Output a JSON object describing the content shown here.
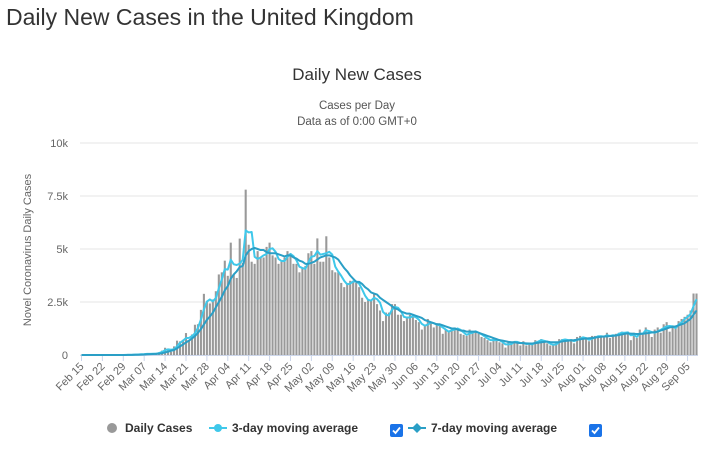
{
  "header": {
    "title": "Daily New Cases in the United Kingdom"
  },
  "chart_data": {
    "type": "bar",
    "title": "Daily New Cases",
    "subtitle": [
      "Cases per Day",
      "Data as of 0:00 GMT+0"
    ],
    "y_label": "Novel Coronavirus Daily Cases",
    "grid": true,
    "legend": "bottom",
    "ylim": [
      0,
      10000
    ],
    "yticks": [
      0,
      {
        "value": 2500,
        "label": "2.5k"
      },
      {
        "value": 5000,
        "label": "5k"
      },
      {
        "value": 7500,
        "label": "7.5k"
      },
      {
        "value": 10000,
        "label": "10k"
      }
    ],
    "categories": [
      "Feb 15",
      null,
      null,
      null,
      null,
      null,
      null,
      "Feb 22",
      null,
      null,
      null,
      null,
      null,
      null,
      "Feb 29",
      null,
      null,
      null,
      null,
      null,
      null,
      "Mar 07",
      null,
      null,
      null,
      null,
      null,
      null,
      "Mar 14",
      null,
      null,
      null,
      null,
      null,
      null,
      "Mar 21",
      null,
      null,
      null,
      null,
      null,
      null,
      "Mar 28",
      null,
      null,
      null,
      null,
      null,
      null,
      "Apr 04",
      null,
      null,
      null,
      null,
      null,
      null,
      "Apr 11",
      null,
      null,
      null,
      null,
      null,
      null,
      "Apr 18",
      null,
      null,
      null,
      null,
      null,
      null,
      "Apr 25",
      null,
      null,
      null,
      null,
      null,
      null,
      "May 02",
      null,
      null,
      null,
      null,
      null,
      null,
      "May 09",
      null,
      null,
      null,
      null,
      null,
      null,
      "May 16",
      null,
      null,
      null,
      null,
      null,
      null,
      "May 23",
      null,
      null,
      null,
      null,
      null,
      null,
      "May 30",
      null,
      null,
      null,
      null,
      null,
      null,
      "Jun 06",
      null,
      null,
      null,
      null,
      null,
      null,
      "Jun 13",
      null,
      null,
      null,
      null,
      null,
      null,
      "Jun 20",
      null,
      null,
      null,
      null,
      null,
      null,
      "Jun 27",
      null,
      null,
      null,
      null,
      null,
      null,
      "Jul 04",
      null,
      null,
      null,
      null,
      null,
      null,
      "Jul 11",
      null,
      null,
      null,
      null,
      null,
      null,
      "Jul 18",
      null,
      null,
      null,
      null,
      null,
      null,
      "Jul 25",
      null,
      null,
      null,
      null,
      null,
      null,
      "Aug 01",
      null,
      null,
      null,
      null,
      null,
      null,
      "Aug 08",
      null,
      null,
      null,
      null,
      null,
      null,
      "Aug 15",
      null,
      null,
      null,
      null,
      null,
      null,
      "Aug 22",
      null,
      null,
      null,
      null,
      null,
      null,
      "Aug 29",
      null,
      null,
      null,
      null,
      null,
      null,
      "Sep 05",
      null,
      null,
      null
    ],
    "series": [
      {
        "name": "Daily Cases",
        "type": "bar",
        "color": "#999999",
        "values": [
          0,
          0,
          0,
          0,
          0,
          0,
          0,
          0,
          0,
          4,
          0,
          0,
          2,
          5,
          3,
          12,
          4,
          11,
          34,
          29,
          48,
          46,
          67,
          48,
          52,
          83,
          134,
          208,
          342,
          251,
          152,
          407,
          676,
          643,
          714,
          1035,
          665,
          967,
          1427,
          1452,
          2129,
          2885,
          2546,
          2433,
          2619,
          3009,
          3800,
          3900,
          4450,
          3735,
          5300,
          3802,
          3634,
          5491,
          4344,
          7800,
          5200,
          4400,
          4300,
          4900,
          4600,
          4600,
          5100,
          5300,
          4700,
          4600,
          4300,
          4400,
          4600,
          4900,
          4800,
          4300,
          4300,
          3900,
          4100,
          4200,
          4800,
          4900,
          4300,
          5500,
          4400,
          4400,
          5600,
          4600,
          4000,
          3900,
          3900,
          3400,
          3200,
          3400,
          3500,
          3500,
          3400,
          3200,
          2700,
          2500,
          2600,
          2600,
          2900,
          2400,
          2100,
          1600,
          2000,
          2000,
          2400,
          2400,
          1900,
          1900,
          1600,
          1800,
          1900,
          1800,
          1650,
          1550,
          1200,
          1400,
          1700,
          1500,
          1300,
          1500,
          1400,
          1000,
          1200,
          1100,
          1200,
          1300,
          1250,
          1000,
          950,
          900,
          1200,
          1050,
          1100,
          1000,
          850,
          800,
          700,
          600,
          800,
          700,
          600,
          550,
          350,
          600,
          600,
          650,
          600,
          450,
          650,
          450,
          500,
          550,
          700,
          650,
          750,
          600,
          550,
          450,
          450,
          600,
          750,
          750,
          700,
          650,
          750,
          550,
          850,
          900,
          750,
          750,
          650,
          900,
          900,
          850,
          900,
          850,
          1050,
          800,
          950,
          1000,
          1050,
          1100,
          1000,
          1100,
          700,
          1050,
          800,
          1200,
          1000,
          1300,
          1100,
          850,
          1200,
          1300,
          1050,
          1450,
          1550,
          1100,
          1400,
          1300,
          1600,
          1700,
          1800,
          1900,
          2100,
          2900,
          2900
        ]
      },
      {
        "name": "3-day moving average",
        "type": "line",
        "color": "#3fc8ea",
        "values": [
          0,
          0,
          0,
          0,
          0,
          0,
          0,
          0,
          0,
          1,
          1,
          1,
          1,
          2,
          3,
          7,
          6,
          9,
          16,
          25,
          37,
          41,
          54,
          54,
          56,
          61,
          90,
          142,
          228,
          267,
          248,
          270,
          412,
          575,
          678,
          797,
          805,
          889,
          1020,
          1282,
          1669,
          2155,
          2520,
          2621,
          2533,
          2687,
          3143,
          3570,
          4050,
          4028,
          4495,
          4279,
          4245,
          4309,
          4490,
          5878,
          5781,
          5800,
          4633,
          4533,
          4600,
          4700,
          4767,
          5000,
          5033,
          4867,
          4533,
          4433,
          4433,
          4633,
          4767,
          4667,
          4467,
          4167,
          4100,
          4067,
          4367,
          4633,
          4667,
          4900,
          4733,
          4767,
          4800,
          4867,
          4733,
          4167,
          3933,
          3733,
          3500,
          3333,
          3367,
          3467,
          3467,
          3367,
          3100,
          2800,
          2600,
          2567,
          2700,
          2633,
          2467,
          2033,
          1900,
          1867,
          2133,
          2267,
          2233,
          2067,
          1800,
          1767,
          1767,
          1833,
          1783,
          1667,
          1467,
          1383,
          1433,
          1533,
          1500,
          1433,
          1400,
          1300,
          1200,
          1100,
          1167,
          1200,
          1250,
          1183,
          1067,
          950,
          1017,
          1050,
          1117,
          1050,
          983,
          883,
          783,
          700,
          700,
          700,
          700,
          617,
          500,
          500,
          517,
          617,
          617,
          567,
          567,
          517,
          533,
          500,
          583,
          633,
          700,
          667,
          633,
          533,
          483,
          500,
          600,
          700,
          733,
          700,
          700,
          650,
          717,
          767,
          833,
          800,
          717,
          767,
          817,
          883,
          883,
          867,
          933,
          900,
          933,
          917,
          1000,
          1050,
          1050,
          1067,
          933,
          950,
          850,
          1017,
          1000,
          1167,
          1133,
          1083,
          1050,
          1117,
          1183,
          1267,
          1350,
          1367,
          1350,
          1267,
          1433,
          1533,
          1700,
          1800,
          1933,
          2300,
          2633
        ]
      },
      {
        "name": "7-day moving average",
        "type": "line",
        "color": "#2a9fc6",
        "values": [
          0,
          0,
          0,
          0,
          0,
          0,
          0,
          0,
          0,
          1,
          1,
          1,
          1,
          2,
          2,
          3,
          4,
          5,
          9,
          12,
          18,
          24,
          34,
          39,
          45,
          53,
          63,
          84,
          121,
          158,
          199,
          235,
          314,
          407,
          496,
          595,
          677,
          780,
          891,
          1048,
          1222,
          1441,
          1661,
          1816,
          2000,
          2250,
          2500,
          2750,
          3050,
          3250,
          3600,
          3800,
          3950,
          4150,
          4200,
          4700,
          4900,
          5000,
          5050,
          5000,
          4950,
          4950,
          4850,
          4800,
          4800,
          4800,
          4750,
          4700,
          4650,
          4700,
          4700,
          4600,
          4550,
          4450,
          4400,
          4300,
          4300,
          4350,
          4400,
          4500,
          4600,
          4650,
          4700,
          4700,
          4650,
          4600,
          4500,
          4300,
          4100,
          3950,
          3750,
          3600,
          3450,
          3450,
          3350,
          3200,
          3100,
          2950,
          2900,
          2850,
          2700,
          2600,
          2500,
          2400,
          2300,
          2200,
          2150,
          2050,
          2000,
          1950,
          1950,
          1900,
          1850,
          1800,
          1750,
          1650,
          1600,
          1550,
          1500,
          1450,
          1450,
          1400,
          1350,
          1300,
          1250,
          1250,
          1200,
          1150,
          1150,
          1100,
          1100,
          1100,
          1100,
          1050,
          1000,
          950,
          900,
          850,
          800,
          750,
          700,
          680,
          650,
          620,
          600,
          600,
          580,
          560,
          560,
          550,
          540,
          540,
          560,
          580,
          600,
          620,
          630,
          610,
          600,
          600,
          610,
          640,
          660,
          680,
          690,
          700,
          720,
          740,
          760,
          780,
          790,
          800,
          820,
          840,
          860,
          870,
          880,
          890,
          900,
          920,
          940,
          970,
          1000,
          1020,
          1010,
          1000,
          990,
          990,
          1000,
          1020,
          1040,
          1060,
          1080,
          1100,
          1150,
          1200,
          1250,
          1300,
          1320,
          1350,
          1400,
          1450,
          1500,
          1600,
          1700,
          1900,
          2100
        ]
      }
    ]
  }
}
